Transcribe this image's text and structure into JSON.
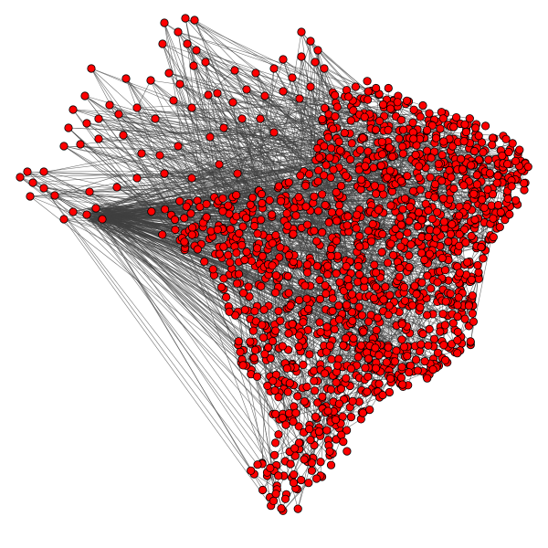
{
  "diagram": {
    "type": "network-graph",
    "edge_color": "#404040",
    "node_fill": "#ff0000",
    "node_stroke": "#000000",
    "background": "#ffffff"
  }
}
